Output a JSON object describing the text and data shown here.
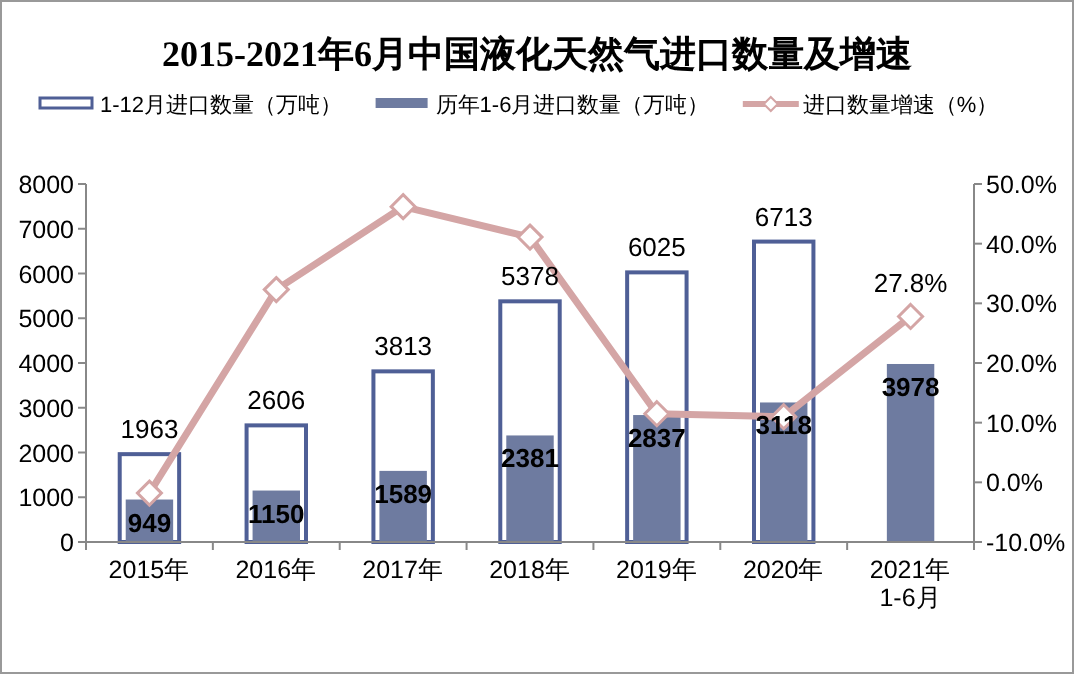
{
  "chart_data": {
    "type": "bar",
    "title": "2015-2021年6月中国液化天然气进口数量及增速",
    "categories": [
      "2015年",
      "2016年",
      "2017年",
      "2018年",
      "2019年",
      "2020年",
      "2021年\n1-6月"
    ],
    "series": [
      {
        "name": "1-12月进口数量（万吨）",
        "color": "#4f5f96",
        "values": [
          1963,
          2606,
          3813,
          5378,
          6025,
          6713,
          null
        ],
        "value_labels": [
          "1963",
          "2606",
          "3813",
          "5378",
          "6025",
          "6713",
          null
        ]
      },
      {
        "name": "历年1-6月进口数量（万吨）",
        "color": "#6e7ba0",
        "values": [
          949,
          1150,
          1589,
          2381,
          2837,
          3118,
          3978
        ],
        "value_labels": [
          "949",
          "1150",
          "1589",
          "2381",
          "2837",
          "3118",
          "3978"
        ]
      },
      {
        "name": "进口数量增速（%）",
        "type": "line",
        "axis": "y2",
        "color": "#d4a5a5",
        "marker": "diamond",
        "values": [
          -1.8,
          32.3,
          46.2,
          41.1,
          11.5,
          11.0,
          27.8
        ],
        "value_labels": [
          null,
          null,
          null,
          null,
          null,
          null,
          "27.8%"
        ]
      }
    ],
    "ylim": [
      0,
      8000
    ],
    "yticks": [
      0,
      1000,
      2000,
      3000,
      4000,
      5000,
      6000,
      7000,
      8000
    ],
    "y2lim": [
      -10,
      50
    ],
    "y2ticks": [
      {
        "value": -10,
        "label": "-10.0%"
      },
      {
        "value": 0,
        "label": "0.0%"
      },
      {
        "value": 10,
        "label": "10.0%"
      },
      {
        "value": 20,
        "label": "20.0%"
      },
      {
        "value": 30,
        "label": "30.0%"
      },
      {
        "value": 40,
        "label": "40.0%"
      },
      {
        "value": 50,
        "label": "50.0%"
      }
    ],
    "legend": "top",
    "grid": false
  }
}
